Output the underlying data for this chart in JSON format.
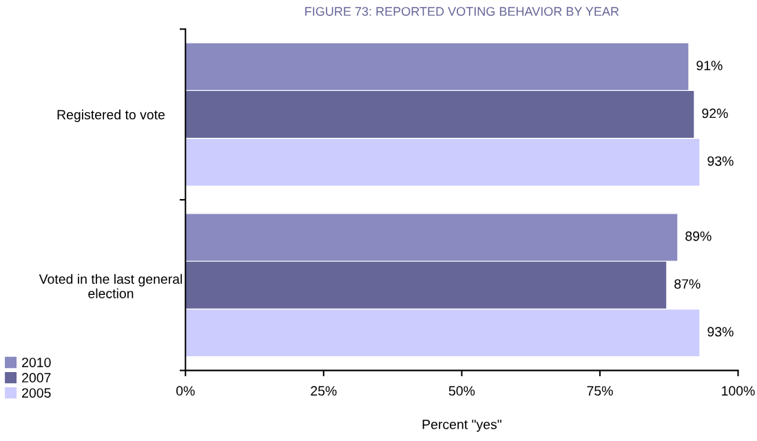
{
  "chart_data": {
    "type": "bar",
    "orientation": "horizontal",
    "title": "FIGURE 73: REPORTED VOTING BEHAVIOR BY YEAR",
    "xlabel": "Percent \"yes\"",
    "categories": [
      "Registered to vote",
      "Voted in the last general\nelection"
    ],
    "series": [
      {
        "name": "2010",
        "color": "#8a8ac0",
        "values": [
          91,
          89
        ],
        "value_labels": [
          "91%",
          "89%"
        ]
      },
      {
        "name": "2007",
        "color": "#666699",
        "values": [
          92,
          87
        ],
        "value_labels": [
          "92%",
          "87%"
        ]
      },
      {
        "name": "2005",
        "color": "#ccccff",
        "values": [
          93,
          93
        ],
        "value_labels": [
          "93%",
          "93%"
        ]
      }
    ],
    "xlim": [
      0,
      100
    ],
    "xticks": [
      {
        "value": 0,
        "label": "0%"
      },
      {
        "value": 25,
        "label": "25%"
      },
      {
        "value": 50,
        "label": "50%"
      },
      {
        "value": 75,
        "label": "75%"
      },
      {
        "value": 100,
        "label": "100%"
      }
    ],
    "grid": false,
    "legend": "bottom left"
  }
}
